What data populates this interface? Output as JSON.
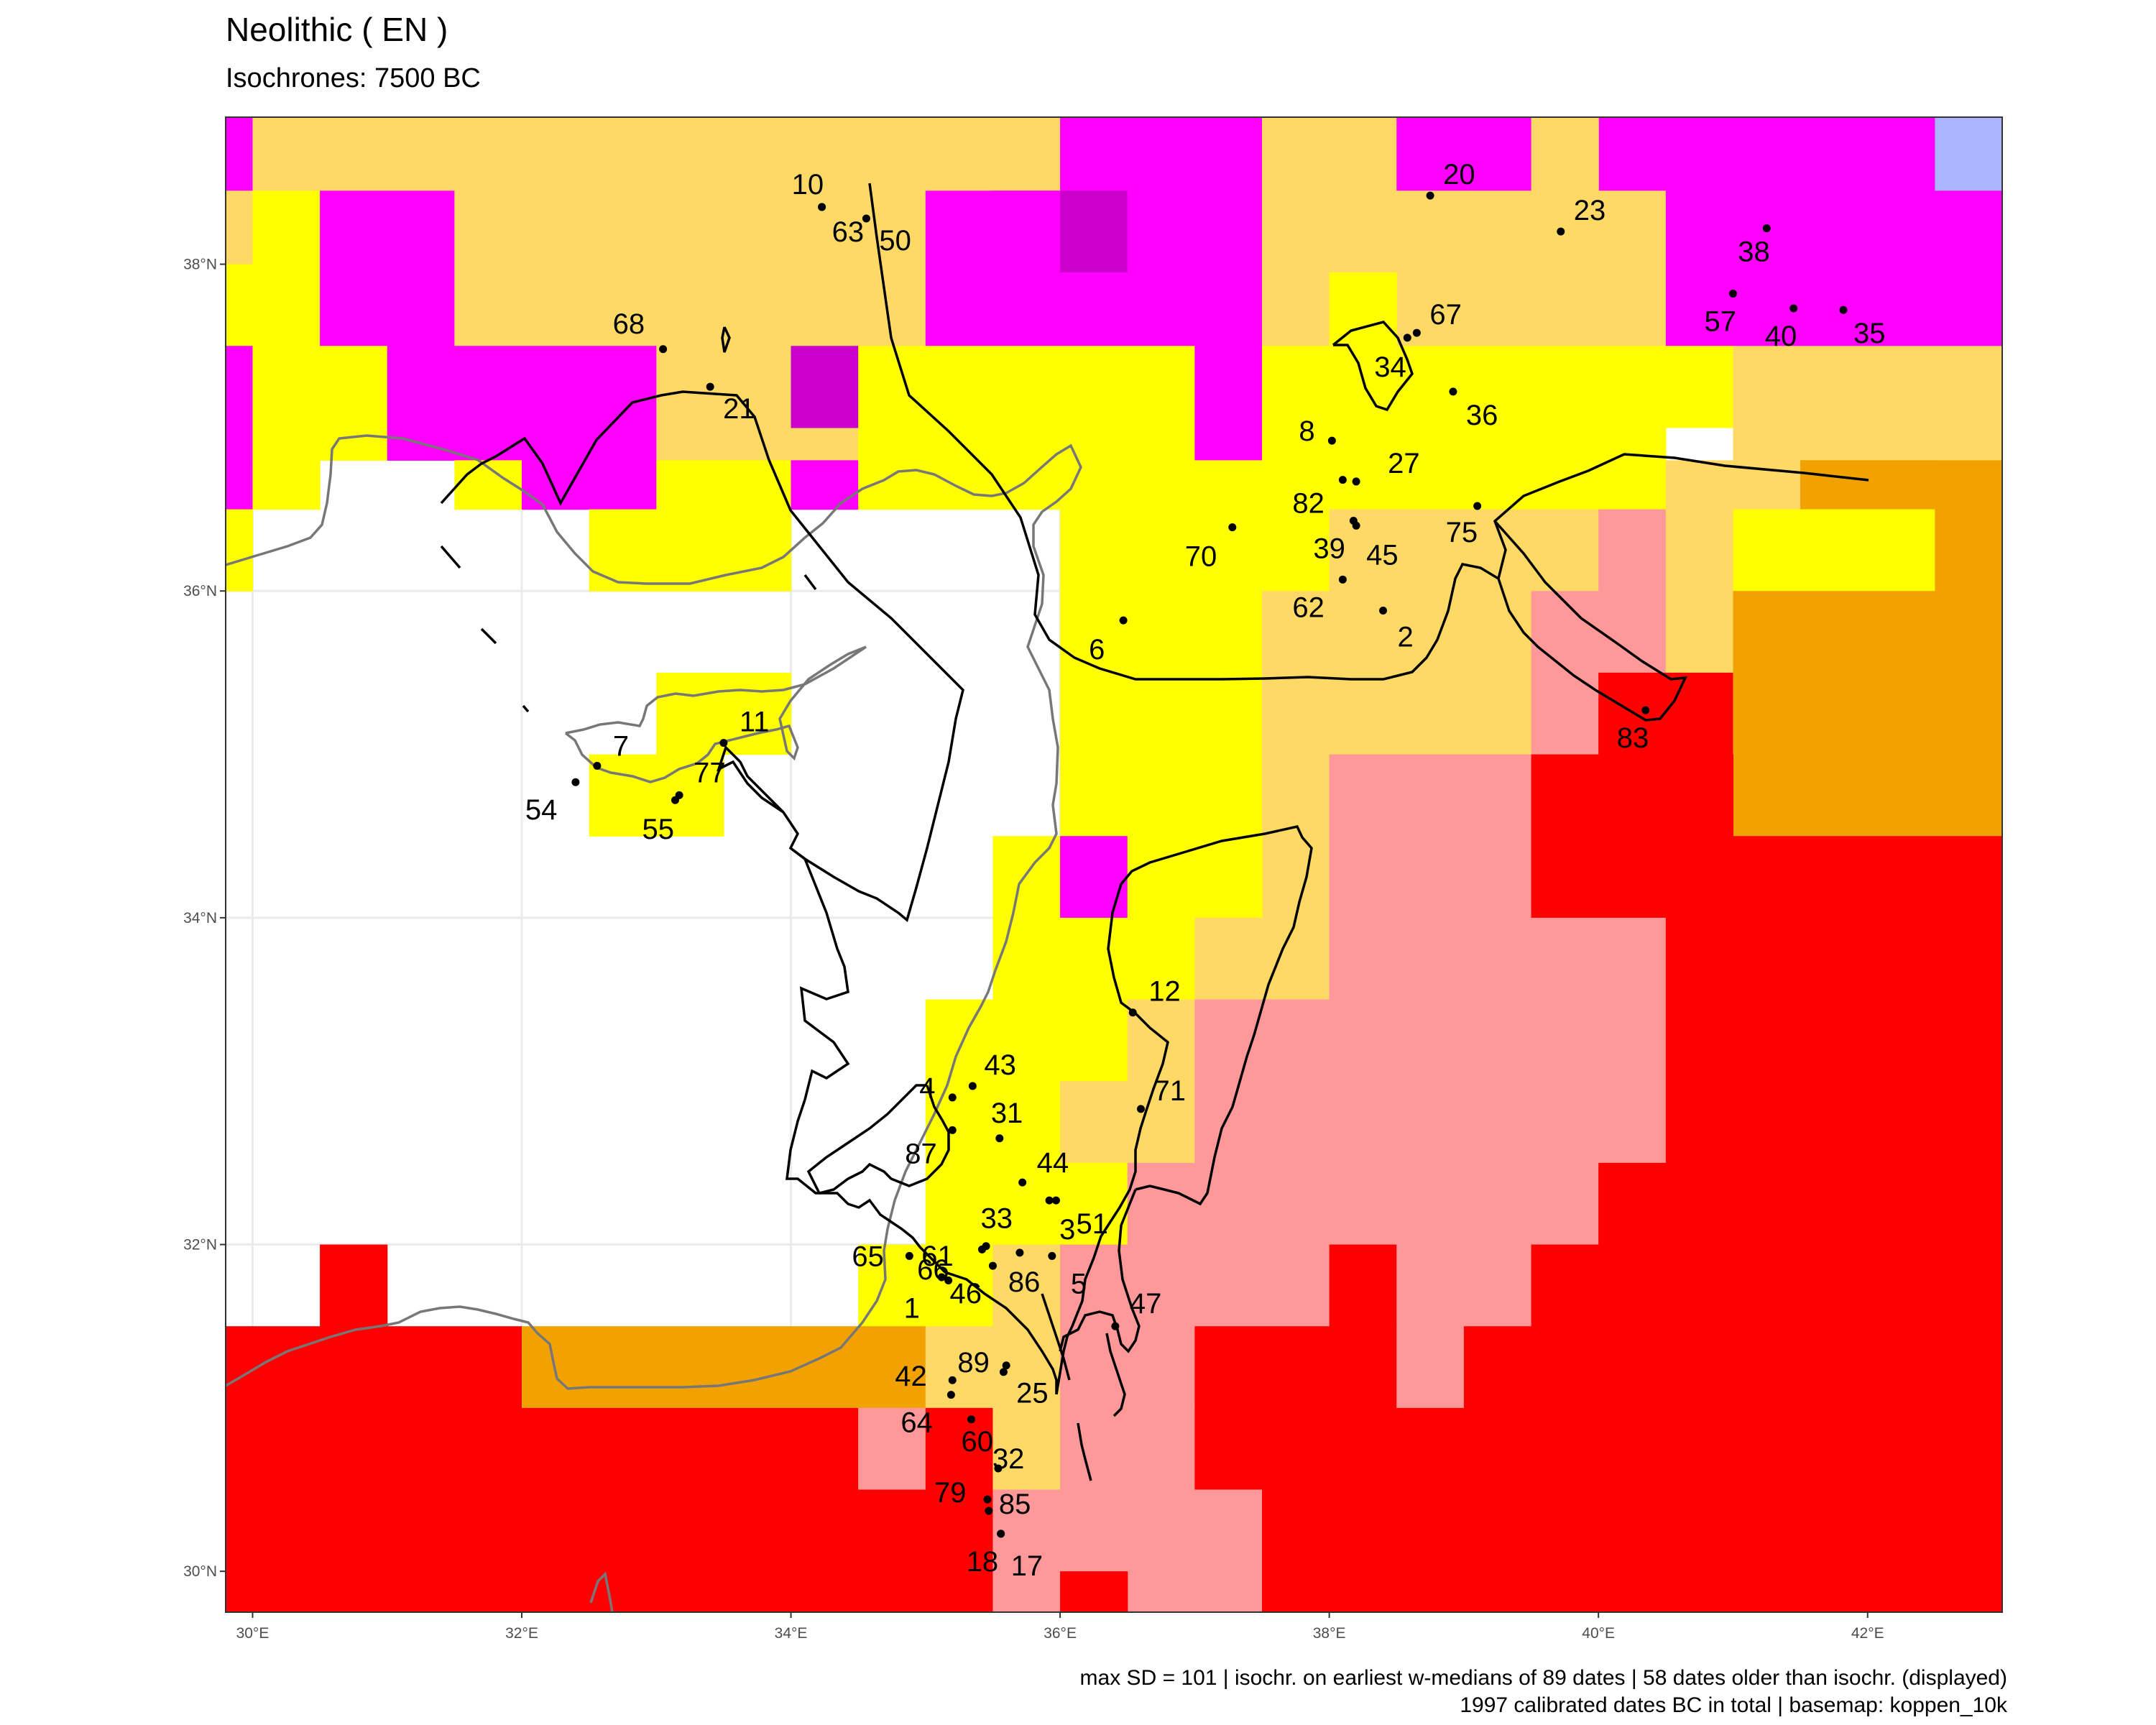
{
  "title": "Neolithic ( EN )",
  "subtitle": "Isochrones: 7500 BC",
  "caption_line1": "max SD = 101 | isochr. on earliest w-medians of 89 dates | 58 dates older than isochr. (displayed)",
  "caption_line2": "1997 calibrated dates BC in total | basemap: koppen_10k",
  "map": {
    "lon_range": [
      29.8,
      43.0
    ],
    "lat_range": [
      29.75,
      38.9
    ],
    "lon_ticks": [
      {
        "value": 30,
        "label": "30°E"
      },
      {
        "value": 32,
        "label": "32°E"
      },
      {
        "value": 34,
        "label": "34°E"
      },
      {
        "value": 36,
        "label": "36°E"
      },
      {
        "value": 38,
        "label": "38°E"
      },
      {
        "value": 40,
        "label": "40°E"
      },
      {
        "value": 42,
        "label": "42°E"
      }
    ],
    "lat_ticks": [
      {
        "value": 30,
        "label": "30°N"
      },
      {
        "value": 32,
        "label": "32°N"
      },
      {
        "value": 34,
        "label": "34°N"
      },
      {
        "value": 36,
        "label": "36°N"
      },
      {
        "value": 38,
        "label": "38°N"
      }
    ],
    "climate_colors": {
      "Y": "#ffff00",
      "O": "#ffd966",
      "M": "#ff00ff",
      "D": "#cc00cc",
      "P": "#ff9999",
      "R": "#ff0000",
      "A": "#f2a200",
      "B": "#aab4ff"
    },
    "sites": [
      {
        "label": "10",
        "lon": 34.23,
        "lat": 38.35
      },
      {
        "label": "63",
        "lon": 34.23,
        "lat": 38.35
      },
      {
        "label": "50",
        "lon": 34.56,
        "lat": 38.28
      },
      {
        "label": "68",
        "lon": 33.05,
        "lat": 37.48
      },
      {
        "label": "21",
        "lon": 33.4,
        "lat": 37.25
      },
      {
        "label": "20",
        "lon": 38.75,
        "lat": 38.42
      },
      {
        "label": "23",
        "lon": 39.72,
        "lat": 38.2
      },
      {
        "label": "38",
        "lon": 41.25,
        "lat": 38.22
      },
      {
        "label": "57",
        "lon": 41.0,
        "lat": 37.82
      },
      {
        "label": "40",
        "lon": 41.45,
        "lat": 37.73
      },
      {
        "label": "35",
        "lon": 41.82,
        "lat": 37.72
      },
      {
        "label": "67",
        "lon": 38.65,
        "lat": 37.58
      },
      {
        "label": "34",
        "lon": 38.58,
        "lat": 37.55
      },
      {
        "label": "36",
        "lon": 38.92,
        "lat": 37.22
      },
      {
        "label": "8",
        "lon": 38.02,
        "lat": 36.92
      },
      {
        "label": "27",
        "lon": 38.2,
        "lat": 36.67
      },
      {
        "label": "82",
        "lon": 38.1,
        "lat": 36.68
      },
      {
        "label": "70",
        "lon": 37.28,
        "lat": 36.39
      },
      {
        "label": "75",
        "lon": 39.1,
        "lat": 36.52
      },
      {
        "label": "39",
        "lon": 38.18,
        "lat": 36.43
      },
      {
        "label": "45",
        "lon": 38.2,
        "lat": 36.4
      },
      {
        "label": "62",
        "lon": 38.1,
        "lat": 36.07
      },
      {
        "label": "2",
        "lon": 38.4,
        "lat": 35.88
      },
      {
        "label": "6",
        "lon": 36.47,
        "lat": 35.82
      },
      {
        "label": "83",
        "lon": 40.35,
        "lat": 35.27
      },
      {
        "label": "11",
        "lon": 33.5,
        "lat": 35.07
      },
      {
        "label": "7",
        "lon": 32.56,
        "lat": 34.93
      },
      {
        "label": "77",
        "lon": 33.17,
        "lat": 34.75
      },
      {
        "label": "54",
        "lon": 32.4,
        "lat": 34.83
      },
      {
        "label": "55",
        "lon": 33.14,
        "lat": 34.72
      },
      {
        "label": "12",
        "lon": 36.54,
        "lat": 33.42
      },
      {
        "label": "43",
        "lon": 35.35,
        "lat": 32.97
      },
      {
        "label": "4",
        "lon": 35.2,
        "lat": 32.9
      },
      {
        "label": "71",
        "lon": 36.6,
        "lat": 32.83
      },
      {
        "label": "31",
        "lon": 35.55,
        "lat": 32.65
      },
      {
        "label": "87",
        "lon": 35.2,
        "lat": 32.7
      },
      {
        "label": "44",
        "lon": 35.72,
        "lat": 32.38
      },
      {
        "label": "66",
        "lon": 35.45,
        "lat": 31.99
      },
      {
        "label": "33",
        "lon": 35.42,
        "lat": 31.97
      },
      {
        "label": "51",
        "lon": 35.97,
        "lat": 32.27
      },
      {
        "label": "3",
        "lon": 35.92,
        "lat": 32.27
      },
      {
        "label": "65",
        "lon": 34.88,
        "lat": 31.93
      },
      {
        "label": "61",
        "lon": 35.12,
        "lat": 31.8
      },
      {
        "label": "5",
        "lon": 35.94,
        "lat": 31.93
      },
      {
        "label": "86",
        "lon": 35.7,
        "lat": 31.95
      },
      {
        "label": "1",
        "lon": 35.17,
        "lat": 31.78
      },
      {
        "label": "46",
        "lon": 35.5,
        "lat": 31.87
      },
      {
        "label": "47",
        "lon": 36.41,
        "lat": 31.5
      },
      {
        "label": "25",
        "lon": 35.6,
        "lat": 31.26
      },
      {
        "label": "42",
        "lon": 35.2,
        "lat": 31.17
      },
      {
        "label": "89",
        "lon": 35.58,
        "lat": 31.22
      },
      {
        "label": "64",
        "lon": 35.19,
        "lat": 31.08
      },
      {
        "label": "60",
        "lon": 35.34,
        "lat": 30.93
      },
      {
        "label": "32",
        "lon": 35.54,
        "lat": 30.63
      },
      {
        "label": "79",
        "lon": 35.46,
        "lat": 30.44
      },
      {
        "label": "85",
        "lon": 35.47,
        "lat": 30.37
      },
      {
        "label": "18",
        "lon": 35.56,
        "lat": 30.23
      },
      {
        "label": "17",
        "lon": 35.56,
        "lat": 30.23
      }
    ]
  }
}
